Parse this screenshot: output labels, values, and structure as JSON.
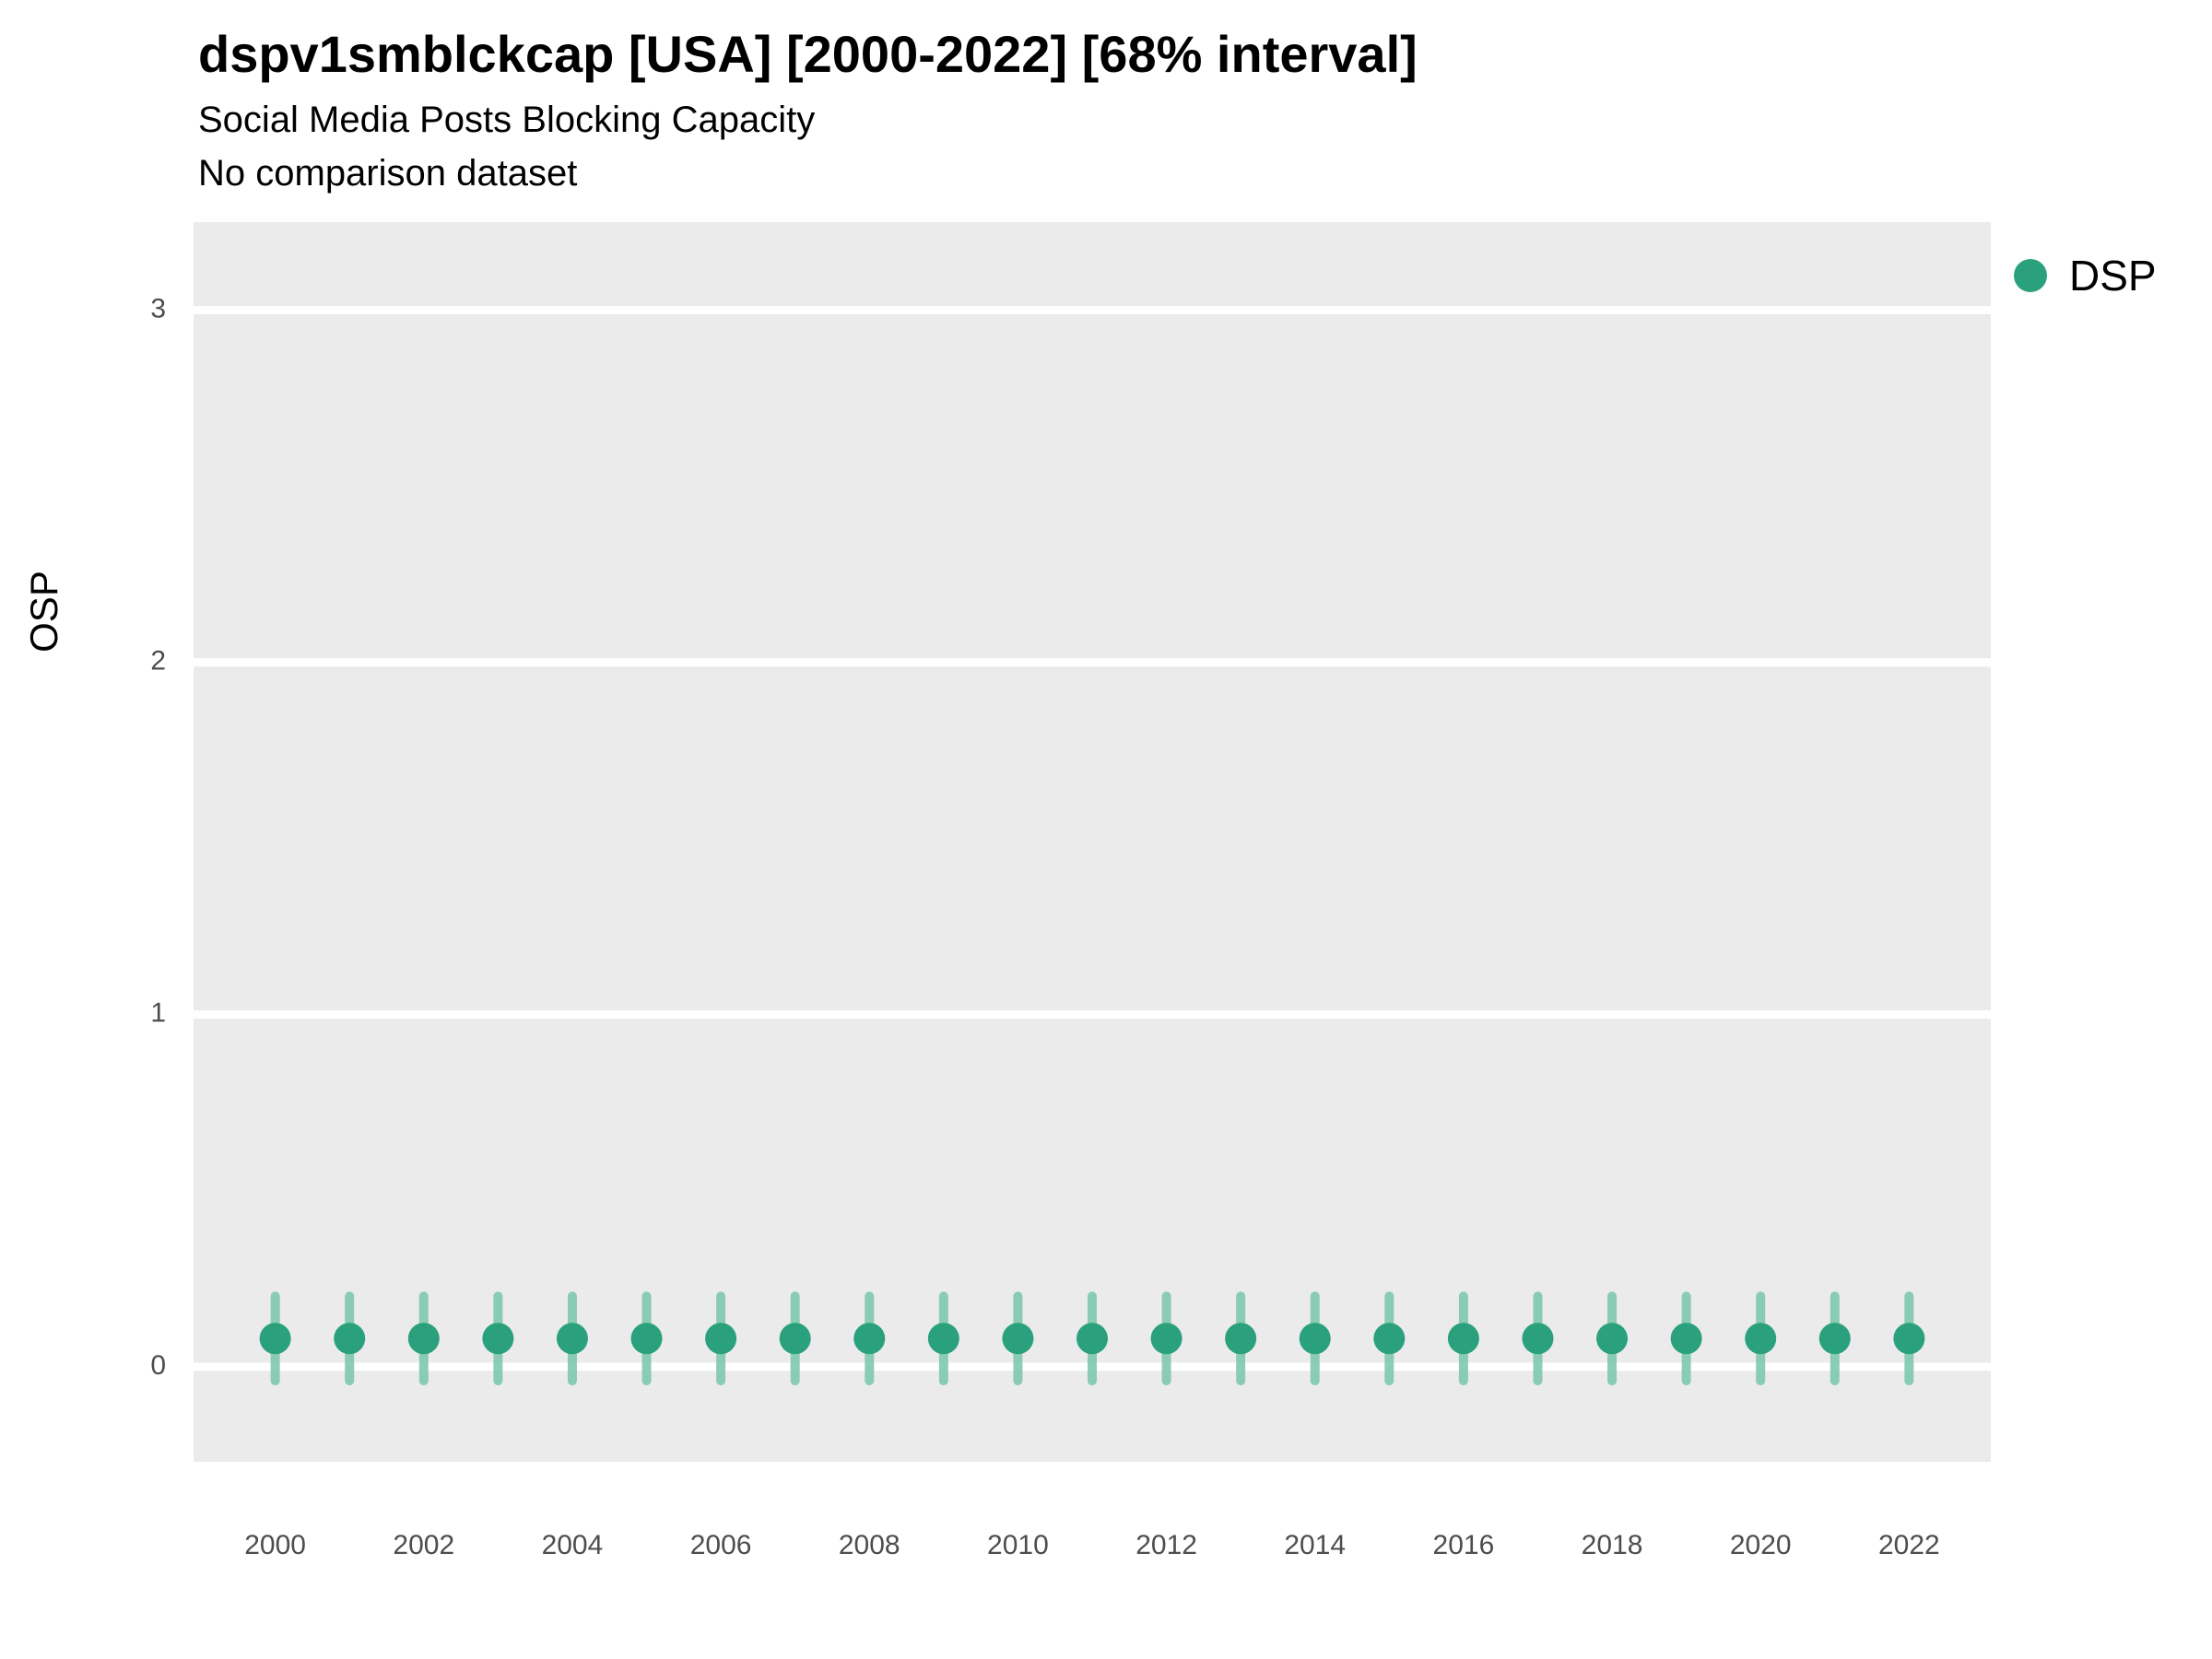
{
  "header": {
    "title": "dspv1smblckcap [USA] [2000-2022] [68% interval]",
    "subtitle": "Social Media Posts Blocking Capacity",
    "note": "No comparison dataset"
  },
  "legend": {
    "items": [
      {
        "label": "DSP",
        "color": "#2AA17C"
      }
    ]
  },
  "chart_data": {
    "type": "scatter",
    "title": "dspv1smblckcap [USA] [2000-2022] [68% interval]",
    "subtitle": "Social Media Posts Blocking Capacity",
    "note": "No comparison dataset",
    "xlabel": "",
    "ylabel": "OSP",
    "interval_label": "68% interval",
    "x": [
      2000,
      2001,
      2002,
      2003,
      2004,
      2005,
      2006,
      2007,
      2008,
      2009,
      2010,
      2011,
      2012,
      2013,
      2014,
      2015,
      2016,
      2017,
      2018,
      2019,
      2020,
      2021,
      2022
    ],
    "series": [
      {
        "name": "DSP",
        "values": [
          0.08,
          0.08,
          0.08,
          0.08,
          0.08,
          0.08,
          0.08,
          0.08,
          0.08,
          0.08,
          0.08,
          0.08,
          0.08,
          0.08,
          0.08,
          0.08,
          0.08,
          0.08,
          0.08,
          0.08,
          0.08,
          0.08,
          0.08
        ],
        "interval_low": [
          -0.04,
          -0.04,
          -0.04,
          -0.04,
          -0.04,
          -0.04,
          -0.04,
          -0.04,
          -0.04,
          -0.04,
          -0.04,
          -0.04,
          -0.04,
          -0.04,
          -0.04,
          -0.04,
          -0.04,
          -0.04,
          -0.04,
          -0.04,
          -0.04,
          -0.04,
          -0.04
        ],
        "interval_high": [
          0.2,
          0.2,
          0.2,
          0.2,
          0.2,
          0.2,
          0.2,
          0.2,
          0.2,
          0.2,
          0.2,
          0.2,
          0.2,
          0.2,
          0.2,
          0.2,
          0.2,
          0.2,
          0.2,
          0.2,
          0.2,
          0.2,
          0.2
        ]
      }
    ],
    "xticks": [
      2000,
      2002,
      2004,
      2006,
      2008,
      2010,
      2012,
      2014,
      2016,
      2018,
      2020,
      2022
    ],
    "yticks": [
      0,
      1,
      2,
      3
    ],
    "xlim": [
      1998.9,
      2023.1
    ],
    "ylim": [
      -0.27,
      3.25
    ],
    "grid": "horizontal-major-white",
    "legend_position": "right",
    "colors": {
      "point": "#2AA17C",
      "interval": "#7FC9AE",
      "panel": "#EBEBEB",
      "grid": "#FFFFFF",
      "tick_text": "#4D4D4D",
      "axis_title": "#000000"
    }
  }
}
